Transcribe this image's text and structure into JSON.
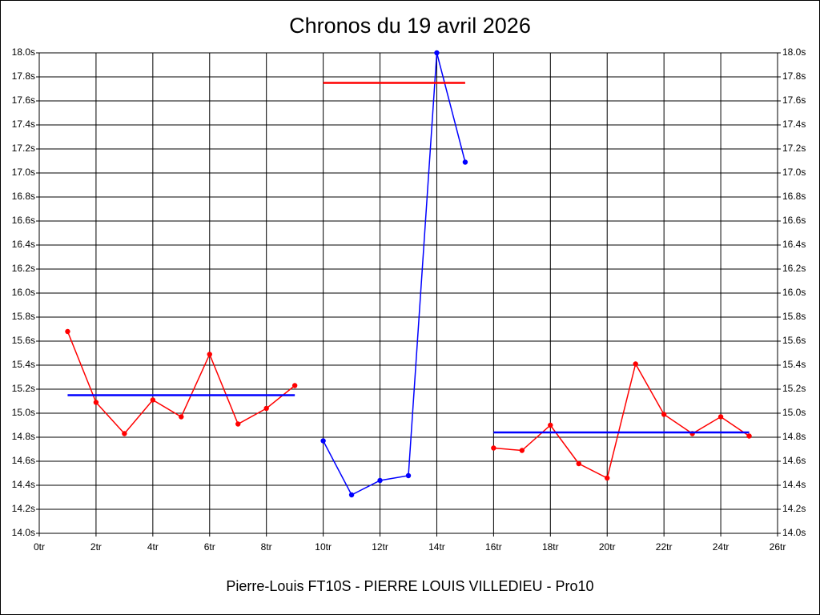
{
  "chart_data": {
    "type": "line",
    "title": "Chronos du 19 avril 2026",
    "x_label": "Pierre-Louis FT10S - PIERRE LOUIS VILLEDIEU - Pro10",
    "xlim": [
      0,
      26
    ],
    "xticks": [
      {
        "value": 0,
        "label": "0tr"
      },
      {
        "value": 2,
        "label": "2tr"
      },
      {
        "value": 4,
        "label": "4tr"
      },
      {
        "value": 6,
        "label": "6tr"
      },
      {
        "value": 8,
        "label": "8tr"
      },
      {
        "value": 10,
        "label": "10tr"
      },
      {
        "value": 12,
        "label": "12tr"
      },
      {
        "value": 14,
        "label": "14tr"
      },
      {
        "value": 16,
        "label": "16tr"
      },
      {
        "value": 18,
        "label": "18tr"
      },
      {
        "value": 20,
        "label": "20tr"
      },
      {
        "value": 22,
        "label": "22tr"
      },
      {
        "value": 24,
        "label": "24tr"
      },
      {
        "value": 26,
        "label": "26tr"
      }
    ],
    "ylim": [
      14.0,
      18.0
    ],
    "yticks": [
      {
        "value": 14.0,
        "label": "14.0s"
      },
      {
        "value": 14.2,
        "label": "14.2s"
      },
      {
        "value": 14.4,
        "label": "14.4s"
      },
      {
        "value": 14.6,
        "label": "14.6s"
      },
      {
        "value": 14.8,
        "label": "14.8s"
      },
      {
        "value": 15.0,
        "label": "15.0s"
      },
      {
        "value": 15.2,
        "label": "15.2s"
      },
      {
        "value": 15.4,
        "label": "15.4s"
      },
      {
        "value": 15.6,
        "label": "15.6s"
      },
      {
        "value": 15.8,
        "label": "15.8s"
      },
      {
        "value": 16.0,
        "label": "16.0s"
      },
      {
        "value": 16.2,
        "label": "16.2s"
      },
      {
        "value": 16.4,
        "label": "16.4s"
      },
      {
        "value": 16.6,
        "label": "16.6s"
      },
      {
        "value": 16.8,
        "label": "16.8s"
      },
      {
        "value": 17.0,
        "label": "17.0s"
      },
      {
        "value": 17.2,
        "label": "17.2s"
      },
      {
        "value": 17.4,
        "label": "17.4s"
      },
      {
        "value": 17.6,
        "label": "17.6s"
      },
      {
        "value": 17.8,
        "label": "17.8s"
      },
      {
        "value": 18.0,
        "label": "18.0s"
      }
    ],
    "grid": true,
    "series": [
      {
        "color": "#ff0000",
        "markers": true,
        "x": [
          1,
          2,
          3,
          4,
          5,
          6,
          7,
          8,
          9
        ],
        "values": [
          15.68,
          15.09,
          14.83,
          15.11,
          14.97,
          15.49,
          14.91,
          15.04,
          15.23
        ]
      },
      {
        "color": "#0000ff",
        "markers": false,
        "x": [
          1,
          9
        ],
        "values": [
          15.15,
          15.15
        ]
      },
      {
        "color": "#0000ff",
        "markers": true,
        "x": [
          10,
          11,
          12,
          13,
          14,
          15
        ],
        "values": [
          14.77,
          14.32,
          14.44,
          14.48,
          18.0,
          17.09
        ]
      },
      {
        "color": "#ff0000",
        "markers": false,
        "x": [
          10,
          15
        ],
        "values": [
          17.75,
          17.75
        ]
      },
      {
        "color": "#ff0000",
        "markers": true,
        "x": [
          16,
          17,
          18,
          19,
          20,
          21,
          22,
          23,
          24,
          25
        ],
        "values": [
          14.71,
          14.69,
          14.9,
          14.58,
          14.46,
          15.41,
          14.99,
          14.83,
          14.97,
          14.81
        ]
      },
      {
        "color": "#0000ff",
        "markers": false,
        "x": [
          16,
          25
        ],
        "values": [
          14.84,
          14.84
        ]
      }
    ]
  }
}
